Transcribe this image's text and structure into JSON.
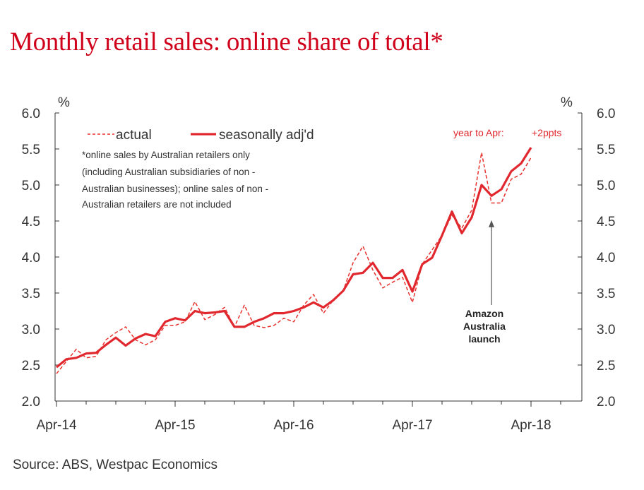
{
  "title": "Monthly retail sales: online share of total*",
  "source": "Source:  ABS, Westpac Economics",
  "chart_data": {
    "type": "line",
    "y_unit_left": "%",
    "y_unit_right": "%",
    "ylim": [
      2.0,
      6.0
    ],
    "y_ticks": [
      "2.0",
      "2.5",
      "3.0",
      "3.5",
      "4.0",
      "4.5",
      "5.0",
      "5.5",
      "6.0"
    ],
    "x_tick_labels": [
      "Apr-14",
      "Apr-15",
      "Apr-16",
      "Apr-17",
      "Apr-18"
    ],
    "x_start": "Apr-14",
    "x_end": "Apr-18",
    "grid": false,
    "legend": {
      "actual": "actual",
      "seasonal": "seasonally adj'd"
    },
    "note_lines": [
      "*online sales by Australian retailers only",
      "(including Australian subsidiaries of non -",
      "Australian businesses); online sales of non -",
      "Australian retailers are not included"
    ],
    "annotation_year": "year to Apr:",
    "annotation_change": "+2ppts",
    "arrow_label_lines": [
      "Amazon",
      "Australia",
      "launch"
    ],
    "arrow_month": "Dec-17",
    "arrow_value": 4.55,
    "colors": {
      "actual": "#e8322f",
      "seasonal": "#e0282e",
      "title": "#d0021b",
      "axis": "#333333",
      "arrow": "#555555"
    },
    "series": [
      {
        "name": "actual",
        "style": "dashed",
        "values": [
          2.38,
          2.55,
          2.72,
          2.6,
          2.62,
          2.85,
          2.95,
          3.03,
          2.85,
          2.78,
          2.85,
          3.05,
          3.05,
          3.1,
          3.38,
          3.13,
          3.2,
          3.3,
          3.03,
          3.33,
          3.05,
          3.02,
          3.05,
          3.15,
          3.1,
          3.33,
          3.48,
          3.22,
          3.4,
          3.53,
          3.92,
          4.15,
          3.82,
          3.57,
          3.65,
          3.72,
          3.37,
          3.9,
          4.1,
          4.3,
          4.58,
          4.4,
          4.65,
          5.45,
          4.75,
          4.75,
          5.08,
          5.15,
          5.38
        ]
      },
      {
        "name": "seasonally adj'd",
        "style": "solid",
        "values": [
          2.47,
          2.58,
          2.6,
          2.66,
          2.67,
          2.78,
          2.88,
          2.77,
          2.87,
          2.93,
          2.9,
          3.1,
          3.15,
          3.12,
          3.25,
          3.22,
          3.23,
          3.25,
          3.03,
          3.03,
          3.1,
          3.15,
          3.22,
          3.22,
          3.25,
          3.3,
          3.37,
          3.3,
          3.4,
          3.53,
          3.76,
          3.78,
          3.92,
          3.71,
          3.71,
          3.82,
          3.52,
          3.9,
          3.99,
          4.3,
          4.63,
          4.33,
          4.55,
          5.0,
          4.85,
          4.94,
          5.19,
          5.3,
          5.52
        ]
      }
    ]
  }
}
